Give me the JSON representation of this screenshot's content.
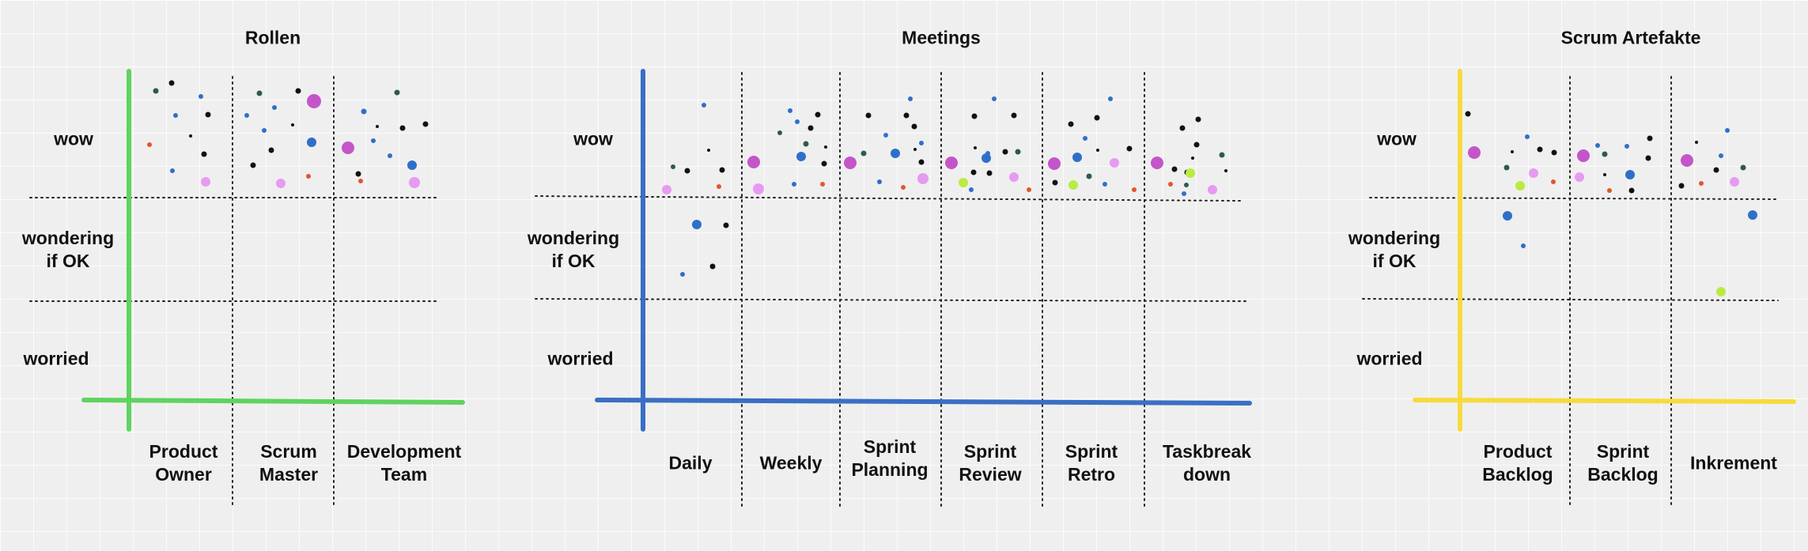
{
  "colors": {
    "rollen": "#5fd35f",
    "meetings": "#3a6fc4",
    "artefakte": "#f7da3e"
  },
  "dot_colors": {
    "k": "#111111",
    "d": "#2e5a4a",
    "b": "#2f6fc9",
    "o": "#e2562c",
    "m": "#c455c9",
    "p": "#e79af2",
    "l": "#b9ec40"
  },
  "boards": [
    {
      "id": "rollen",
      "title": "Rollen",
      "rows": [
        "wow",
        "wondering\nif OK",
        "worried"
      ],
      "columns": [
        "Product\nOwner",
        "Scrum\nMaster",
        "Development\nTeam"
      ]
    },
    {
      "id": "meetings",
      "title": "Meetings",
      "rows": [
        "wow",
        "wondering\nif OK",
        "worried"
      ],
      "columns": [
        "Daily",
        "Weekly",
        "Sprint\nPlanning",
        "Sprint\nReview",
        "Sprint\nRetro",
        "Taskbreak\ndown"
      ]
    },
    {
      "id": "artefakte",
      "title": "Scrum Artefakte",
      "rows": [
        "wow",
        "wondering\nif OK",
        "worried"
      ],
      "columns": [
        "Product\nBacklog",
        "Sprint\nBacklog",
        "Inkrement"
      ]
    }
  ]
}
